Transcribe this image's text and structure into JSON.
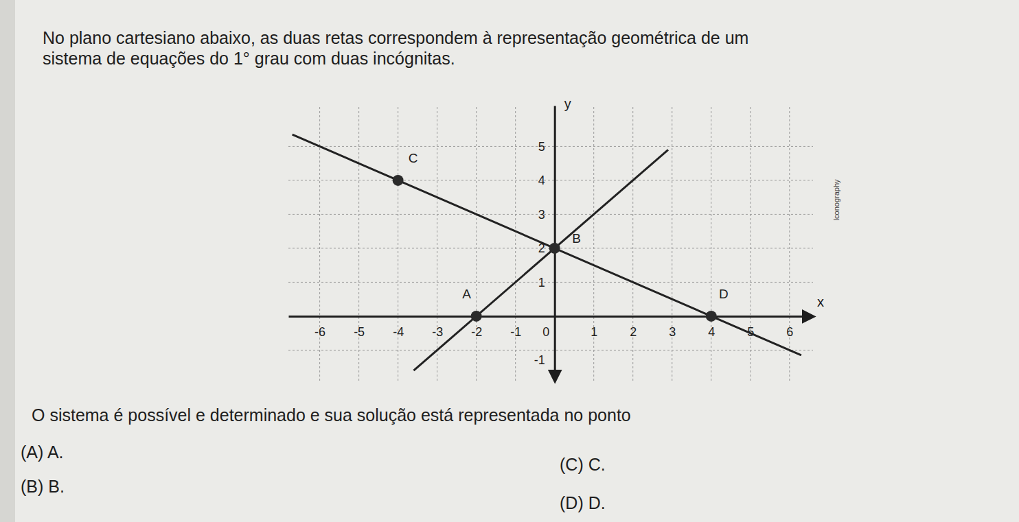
{
  "intro": [
    "No plano cartesiano abaixo, as duas retas correspondem à representação geométrica de um",
    "sistema de equações do 1° grau com duas incógnitas."
  ],
  "chart_data": {
    "type": "line",
    "x_label": "x",
    "y_label": "y",
    "xlim": [
      -6.8,
      6.6
    ],
    "ylim": [
      -1.9,
      6.2
    ],
    "xticks": [
      -6,
      -5,
      -4,
      -3,
      -2,
      -1,
      0,
      1,
      2,
      3,
      4,
      5,
      6
    ],
    "yticks": [
      -1,
      1,
      2,
      3,
      4,
      5
    ],
    "grid": true,
    "series": [
      {
        "type": "line",
        "color": "#222222",
        "x": [
          -3.6,
          2.9
        ],
        "values": [
          -1.6,
          4.9
        ]
      },
      {
        "type": "line",
        "color": "#222222",
        "x": [
          -6.7,
          6.3
        ],
        "values": [
          5.35,
          -1.15
        ]
      },
      {
        "type": "scatter",
        "color": "#2b2b2b",
        "marker": "circle",
        "labels": [
          "A",
          "B",
          "C",
          "D"
        ],
        "x": [
          -2,
          0,
          -4,
          4
        ],
        "values": [
          0,
          2,
          4,
          0
        ]
      }
    ]
  },
  "credit": "Iconography",
  "question": "O sistema é possível e determinado e sua solução está representada no ponto",
  "options": [
    "(A) A.",
    "(B) B.",
    "(C) C.",
    "(D) D."
  ]
}
